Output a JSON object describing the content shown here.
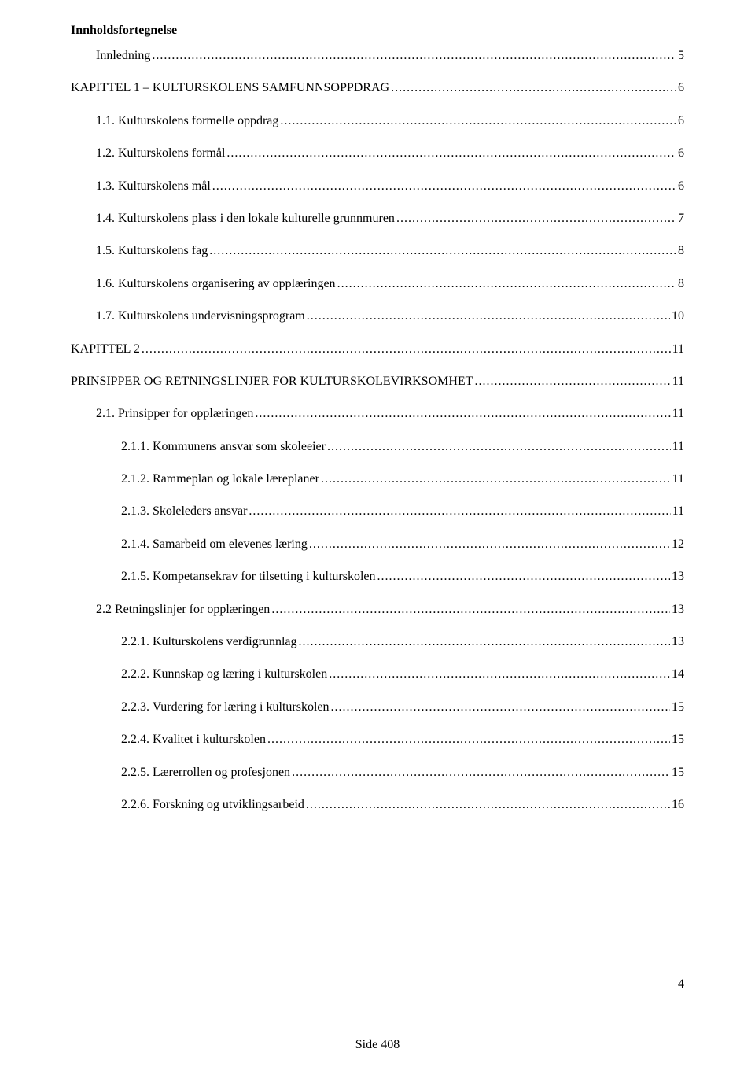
{
  "heading": "Innholdsfortegnelse",
  "entries": [
    {
      "label": "Innledning",
      "page": "5",
      "indent": 1
    },
    {
      "label": "KAPITTEL 1 – KULTURSKOLENS SAMFUNNSOPPDRAG",
      "page": "6",
      "indent": 0
    },
    {
      "label": "1.1. Kulturskolens formelle oppdrag",
      "page": "6",
      "indent": 1
    },
    {
      "label": "1.2. Kulturskolens formål",
      "page": "6",
      "indent": 1
    },
    {
      "label": "1.3. Kulturskolens mål",
      "page": "6",
      "indent": 1
    },
    {
      "label": "1.4. Kulturskolens plass i den lokale kulturelle grunnmuren",
      "page": "7",
      "indent": 1
    },
    {
      "label": "1.5. Kulturskolens fag",
      "page": "8",
      "indent": 1
    },
    {
      "label": "1.6. Kulturskolens organisering av opplæringen",
      "page": "8",
      "indent": 1
    },
    {
      "label": "1.7. Kulturskolens undervisningsprogram",
      "page": "10",
      "indent": 1
    },
    {
      "label": "KAPITTEL 2",
      "page": "11",
      "indent": 0
    },
    {
      "label": "PRINSIPPER OG RETNINGSLINJER FOR KULTURSKOLEVIRKSOMHET",
      "page": "11",
      "indent": 0
    },
    {
      "label": "2.1. Prinsipper for opplæringen",
      "page": "11",
      "indent": 1
    },
    {
      "label": "2.1.1. Kommunens ansvar som skoleeier",
      "page": "11",
      "indent": 2
    },
    {
      "label": "2.1.2. Rammeplan og lokale læreplaner",
      "page": "11",
      "indent": 2
    },
    {
      "label": "2.1.3. Skoleleders ansvar",
      "page": "11",
      "indent": 2
    },
    {
      "label": "2.1.4. Samarbeid om elevenes læring",
      "page": "12",
      "indent": 2
    },
    {
      "label": "2.1.5. Kompetansekrav for tilsetting i kulturskolen",
      "page": "13",
      "indent": 2
    },
    {
      "label": "2.2 Retningslinjer for opplæringen",
      "page": "13",
      "indent": 1
    },
    {
      "label": "2.2.1. Kulturskolens verdigrunnlag",
      "page": "13",
      "indent": 2
    },
    {
      "label": "2.2.2. Kunnskap og læring i kulturskolen",
      "page": "14",
      "indent": 2
    },
    {
      "label": "2.2.3. Vurdering for læring i kulturskolen",
      "page": "15",
      "indent": 2
    },
    {
      "label": "2.2.4. Kvalitet i kulturskolen",
      "page": "15",
      "indent": 2
    },
    {
      "label": "2.2.5. Lærerrollen og profesjonen",
      "page": "15",
      "indent": 2
    },
    {
      "label": "2.2.6. Forskning og utviklingsarbeid",
      "page": "16",
      "indent": 2
    }
  ],
  "pageNumberRight": "4",
  "footer": "Side 408"
}
